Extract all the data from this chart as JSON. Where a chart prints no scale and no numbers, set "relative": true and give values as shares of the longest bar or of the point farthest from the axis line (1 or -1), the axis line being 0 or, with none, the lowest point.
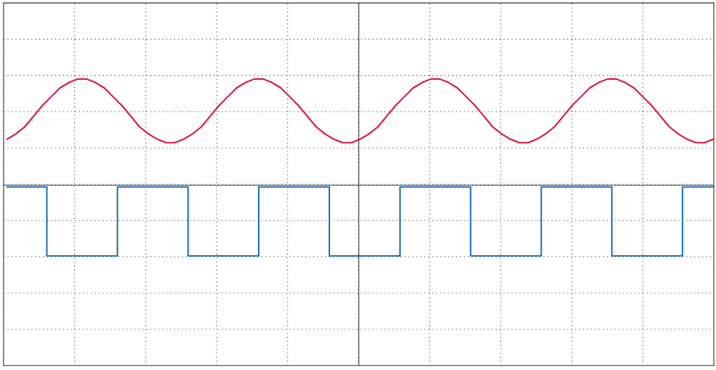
{
  "chart_data": {
    "type": "line",
    "relative": true,
    "grid": true,
    "tick_labels": false,
    "ref_lines": [
      {
        "axis": "y",
        "value": 0.4,
        "color": "#333333",
        "line_style": "solid"
      }
    ],
    "categories": [
      null,
      null,
      null,
      null,
      null,
      null,
      null,
      null,
      null,
      null,
      null,
      null,
      null,
      null,
      null,
      null,
      null,
      null,
      null,
      null,
      null,
      null,
      null,
      null,
      null,
      null,
      null,
      null,
      null,
      null,
      null,
      null,
      null,
      null,
      null,
      null,
      null,
      null,
      null,
      null,
      null,
      null,
      null,
      null,
      null,
      null,
      null,
      null,
      null,
      null,
      null,
      null,
      null,
      null,
      null,
      null,
      null,
      null,
      null,
      null,
      null,
      null,
      null,
      null,
      null,
      null,
      null,
      null,
      null,
      null,
      null,
      null,
      null,
      null,
      null,
      null,
      null,
      null,
      null,
      null,
      null
    ],
    "series": [
      {
        "color": "#e0103a",
        "values": [
          0.66,
          0.69,
          0.73,
          0.79,
          0.85,
          0.9,
          0.95,
          0.98,
          1.0,
          1.0,
          0.98,
          0.95,
          0.9,
          0.85,
          0.79,
          0.73,
          0.69,
          0.66,
          0.64,
          0.64,
          0.66,
          0.69,
          0.73,
          0.79,
          0.85,
          0.9,
          0.95,
          0.98,
          1.0,
          1.0,
          0.98,
          0.95,
          0.9,
          0.85,
          0.79,
          0.73,
          0.69,
          0.66,
          0.64,
          0.64,
          0.66,
          0.69,
          0.73,
          0.79,
          0.85,
          0.9,
          0.95,
          0.98,
          1.0,
          1.0,
          0.98,
          0.95,
          0.9,
          0.85,
          0.79,
          0.73,
          0.69,
          0.66,
          0.64,
          0.64,
          0.66,
          0.69,
          0.73,
          0.79,
          0.85,
          0.9,
          0.95,
          0.98,
          1.0,
          1.0,
          0.98,
          0.95,
          0.9,
          0.85,
          0.79,
          0.73,
          0.69,
          0.66,
          0.64,
          0.64,
          0.66
        ]
      },
      {
        "color": "#1f6fb4",
        "type": "step",
        "values": [
          0.39,
          0.39,
          0.39,
          0.39,
          0.39,
          0,
          0,
          0,
          0,
          0,
          0,
          0,
          0,
          0.39,
          0.39,
          0.39,
          0.39,
          0.39,
          0.39,
          0.39,
          0.39,
          0,
          0,
          0,
          0,
          0,
          0,
          0,
          0,
          0.39,
          0.39,
          0.39,
          0.39,
          0.39,
          0.39,
          0.39,
          0.39,
          0,
          0,
          0,
          0,
          0,
          0,
          0,
          0,
          0.39,
          0.39,
          0.39,
          0.39,
          0.39,
          0.39,
          0.39,
          0.39,
          0,
          0,
          0,
          0,
          0,
          0,
          0,
          0,
          0.39,
          0.39,
          0.39,
          0.39,
          0.39,
          0.39,
          0.39,
          0.39,
          0,
          0,
          0,
          0,
          0,
          0,
          0,
          0,
          0.39,
          0.39,
          0.39,
          0.39
        ]
      }
    ]
  }
}
